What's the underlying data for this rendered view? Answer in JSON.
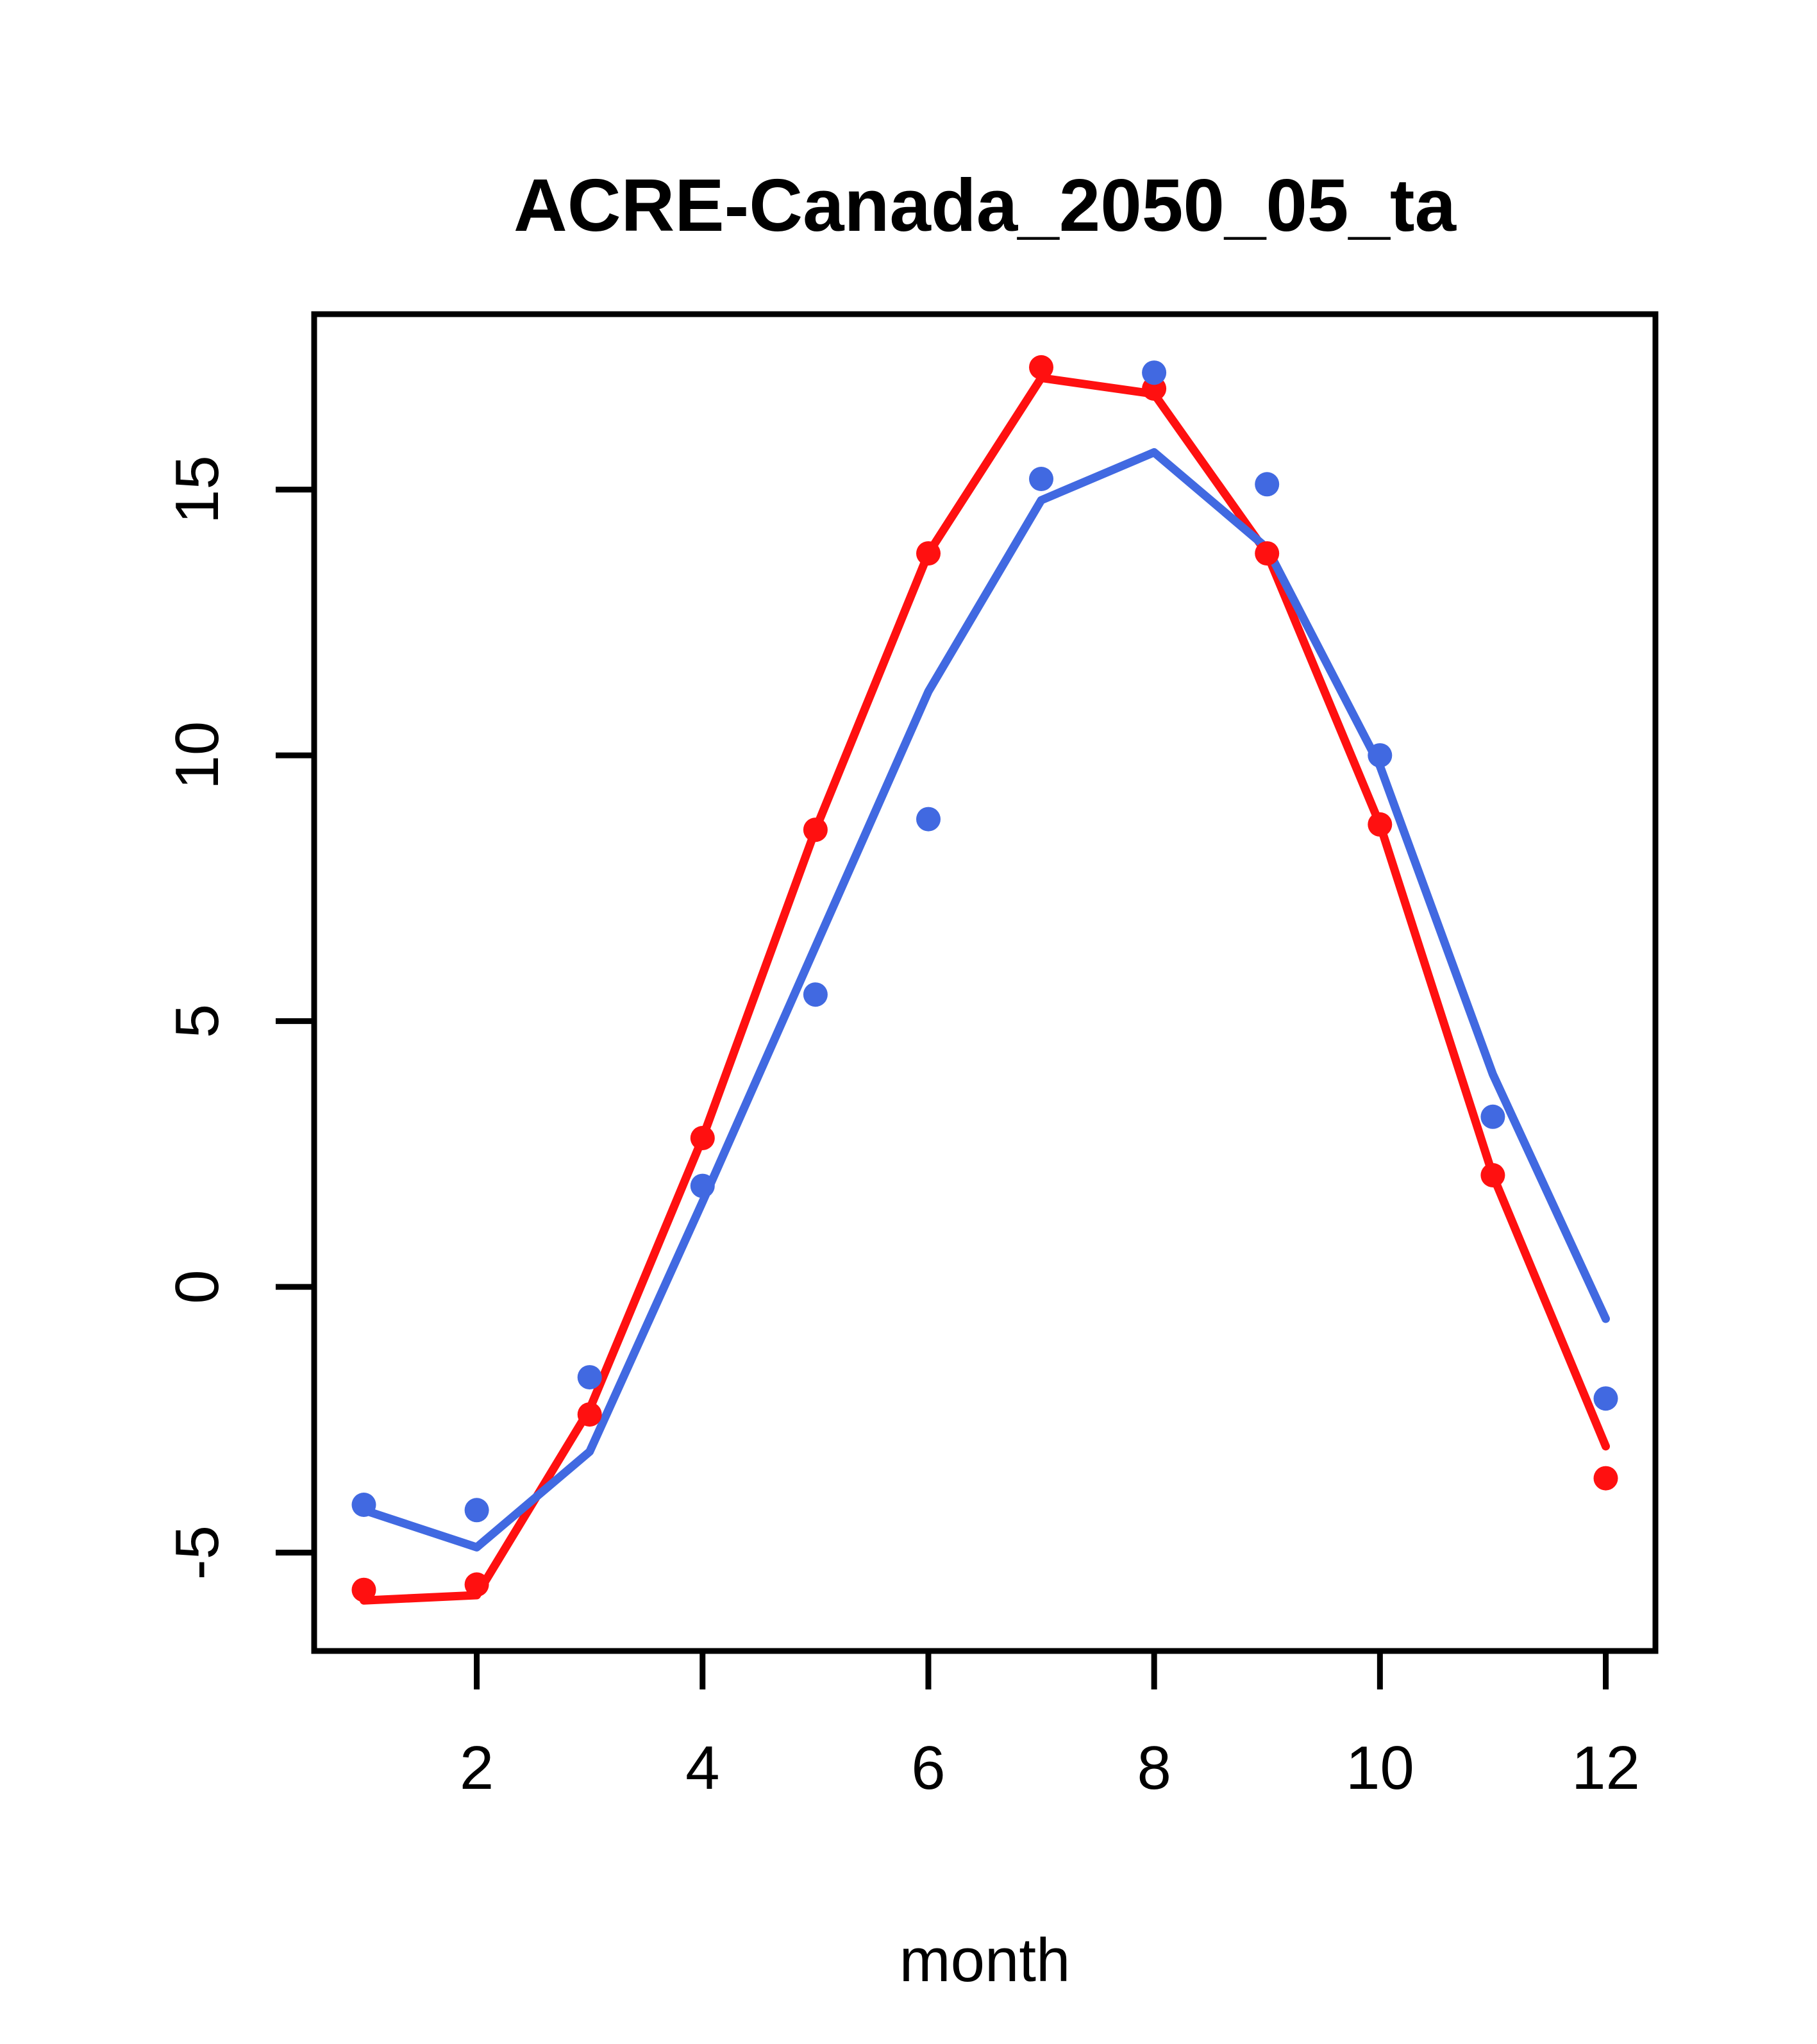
{
  "chart_data": {
    "type": "line",
    "title": "ACRE-Canada_2050_05_ta",
    "xlabel": "month",
    "ylabel": "",
    "x": [
      1,
      2,
      3,
      4,
      5,
      6,
      7,
      8,
      9,
      10,
      11,
      12
    ],
    "xticks": [
      2,
      4,
      6,
      8,
      10,
      12
    ],
    "yticks": [
      -5,
      0,
      5,
      10,
      15
    ],
    "xlim": [
      0.56,
      12.44
    ],
    "ylim": [
      -6.85,
      18.3
    ],
    "grid": false,
    "legend_position": "none",
    "series": [
      {
        "name": "red-line",
        "type": "line",
        "color": "#ff1010",
        "values": [
          -5.9,
          -5.8,
          -2.3,
          2.8,
          8.6,
          13.8,
          17.1,
          16.8,
          13.8,
          8.7,
          2.1,
          -3.0
        ]
      },
      {
        "name": "blue-line",
        "type": "line",
        "color": "#4169e1",
        "values": [
          -4.2,
          -4.9,
          -3.1,
          1.6,
          6.4,
          11.2,
          14.8,
          15.7,
          13.9,
          9.8,
          4.0,
          -0.6
        ]
      },
      {
        "name": "red-points",
        "type": "scatter",
        "color": "#ff1010",
        "values": [
          -5.7,
          -5.6,
          -2.4,
          2.8,
          8.6,
          13.8,
          17.3,
          16.9,
          13.8,
          8.7,
          2.1,
          -3.6
        ]
      },
      {
        "name": "blue-points",
        "type": "scatter",
        "color": "#4169e1",
        "values": [
          -4.1,
          -4.2,
          -1.7,
          1.9,
          5.5,
          8.8,
          15.2,
          17.2,
          15.1,
          10.0,
          3.2,
          -2.1
        ]
      }
    ],
    "axis_color": "#000000",
    "background_color": "#ffffff"
  }
}
